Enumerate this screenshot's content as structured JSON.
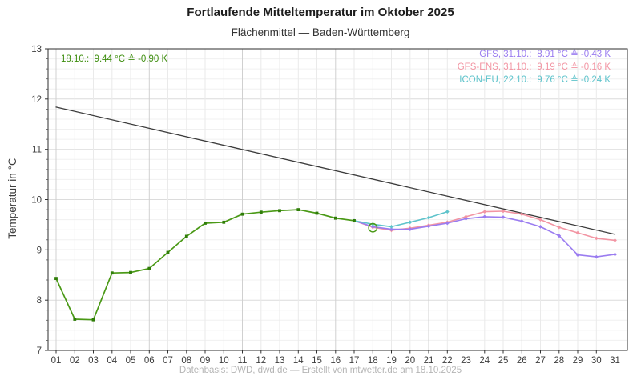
{
  "header": {
    "title": "Fortlaufende Mitteltemperatur im Oktober 2025",
    "subtitle": "Flächenmittel — Baden-Württemberg"
  },
  "annotation": {
    "text": "18.10.:  9.44 °C ≙ -0.90 K",
    "color": "#3e8e0f"
  },
  "legend": {
    "items": [
      {
        "name": "GFS, 31.10.:",
        "value": "8.91 °C ≙ -0.43 K",
        "color": "#9a7cf0"
      },
      {
        "name": "GFS-ENS, 31.10.:",
        "value": "9.19 °C ≙ -0.16 K",
        "color": "#f295a3"
      },
      {
        "name": "ICON-EU, 22.10.:",
        "value": "9.76 °C ≙ -0.24 K",
        "color": "#5ec3cb"
      }
    ]
  },
  "footer": {
    "text": "Datenbasis: DWD, dwd.de — Erstellt von mtwetter.de am 18.10.2025"
  },
  "chart_data": {
    "type": "line",
    "title": "Fortlaufende Mitteltemperatur im Oktober 2025",
    "subtitle": "Flächenmittel — Baden-Württemberg",
    "xlabel": "",
    "ylabel": "Temperatur in °C",
    "ylim": [
      7,
      13
    ],
    "yticks": [
      7,
      8,
      9,
      10,
      11,
      12,
      13
    ],
    "xticks": [
      "01",
      "02",
      "03",
      "04",
      "05",
      "06",
      "07",
      "08",
      "09",
      "10",
      "11",
      "12",
      "13",
      "14",
      "15",
      "16",
      "17",
      "18",
      "19",
      "20",
      "21",
      "22",
      "23",
      "24",
      "25",
      "26",
      "27",
      "28",
      "29",
      "30",
      "31"
    ],
    "grid": {
      "y_minor_step": 0.2,
      "x_major_days": [
        1,
        6,
        11,
        16,
        21,
        26,
        31
      ]
    },
    "legend_position": "top-right",
    "series": [
      {
        "id": "reference-mean",
        "color": "#3b3b3b",
        "width": 1.3,
        "marker": "none",
        "points": [
          [
            1,
            11.84
          ],
          [
            31,
            9.31
          ]
        ]
      },
      {
        "id": "gfs_ens",
        "name": "GFS-ENS",
        "color": "#f295a3",
        "width": 1.6,
        "marker": "diamond",
        "points": [
          [
            17,
            9.58
          ],
          [
            18,
            9.45
          ],
          [
            19,
            9.39
          ],
          [
            20,
            9.43
          ],
          [
            21,
            9.49
          ],
          [
            22,
            9.55
          ],
          [
            23,
            9.66
          ],
          [
            24,
            9.76
          ],
          [
            25,
            9.77
          ],
          [
            26,
            9.71
          ],
          [
            27,
            9.6
          ],
          [
            28,
            9.45
          ],
          [
            29,
            9.34
          ],
          [
            30,
            9.23
          ],
          [
            31,
            9.19
          ]
        ]
      },
      {
        "id": "gfs",
        "name": "GFS",
        "color": "#9a7cf0",
        "width": 1.6,
        "marker": "diamond",
        "points": [
          [
            17,
            9.58
          ],
          [
            18,
            9.46
          ],
          [
            19,
            9.41
          ],
          [
            20,
            9.41
          ],
          [
            21,
            9.47
          ],
          [
            22,
            9.53
          ],
          [
            23,
            9.62
          ],
          [
            24,
            9.66
          ],
          [
            25,
            9.65
          ],
          [
            26,
            9.57
          ],
          [
            27,
            9.46
          ],
          [
            28,
            9.28
          ],
          [
            29,
            8.9
          ],
          [
            30,
            8.86
          ],
          [
            31,
            8.91
          ]
        ]
      },
      {
        "id": "icon_eu",
        "name": "ICON-EU",
        "color": "#5ec3cb",
        "width": 1.6,
        "marker": "diamond",
        "points": [
          [
            17,
            9.58
          ],
          [
            18,
            9.51
          ],
          [
            19,
            9.46
          ],
          [
            20,
            9.55
          ],
          [
            21,
            9.64
          ],
          [
            22,
            9.76
          ]
        ]
      },
      {
        "id": "measured",
        "color": "#4a9916",
        "marker_color": "#2f7d08",
        "width": 1.7,
        "marker": "square",
        "points": [
          [
            1,
            8.43
          ],
          [
            2,
            7.62
          ],
          [
            3,
            7.61
          ],
          [
            4,
            8.54
          ],
          [
            5,
            8.55
          ],
          [
            6,
            8.63
          ],
          [
            7,
            8.95
          ],
          [
            8,
            9.27
          ],
          [
            9,
            9.53
          ],
          [
            10,
            9.55
          ],
          [
            11,
            9.71
          ],
          [
            12,
            9.75
          ],
          [
            13,
            9.78
          ],
          [
            14,
            9.8
          ],
          [
            15,
            9.73
          ],
          [
            16,
            9.63
          ],
          [
            17,
            9.58
          ]
        ]
      }
    ],
    "preliminary": {
      "day": 18,
      "value": 9.44,
      "marker": "open-circle",
      "color": "#4a9916"
    }
  }
}
